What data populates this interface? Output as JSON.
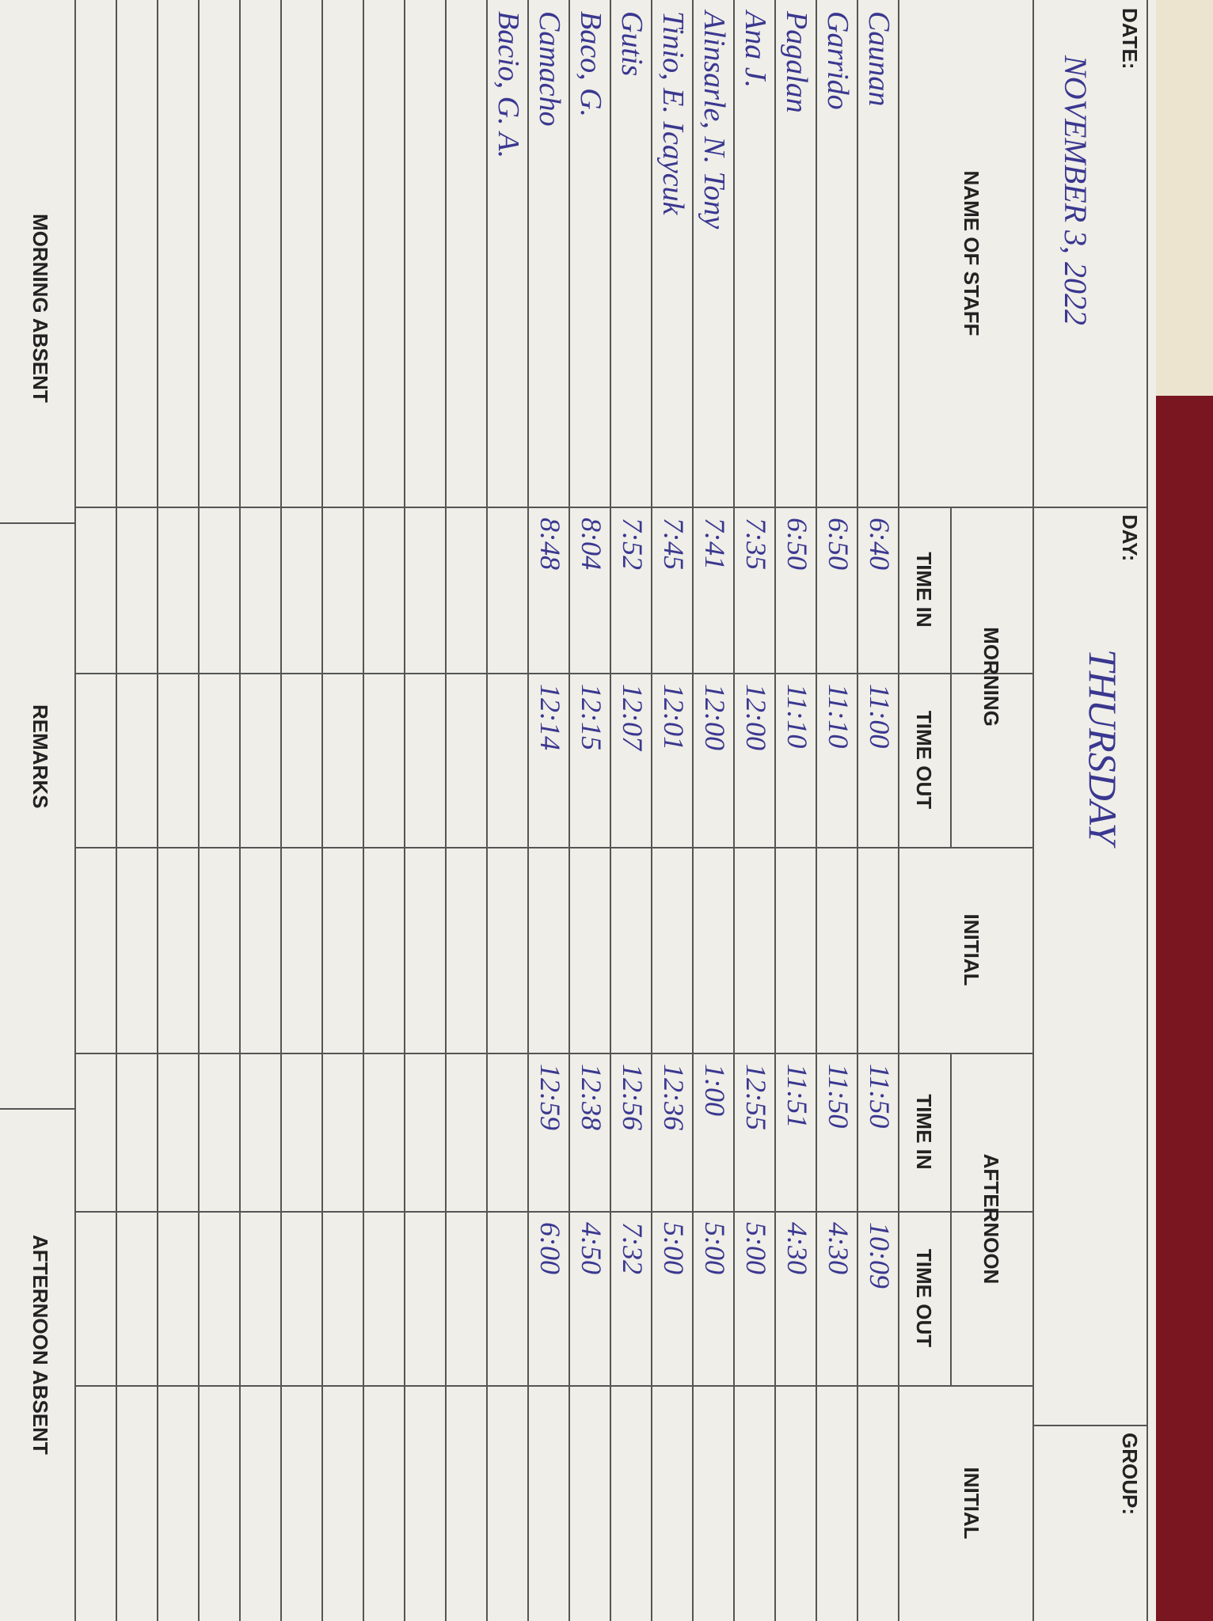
{
  "header": {
    "date_label": "DATE:",
    "date": "NOVEMBER 3, 2022",
    "day_label": "DAY:",
    "day": "THURSDAY",
    "group_label": "GROUP:"
  },
  "table": {
    "columns": [
      "NAME OF STAFF",
      "MORNING",
      "TIME IN",
      "TIME OUT",
      "INITIAL",
      "AFTERNOON",
      "TIME IN",
      "TIME OUT",
      "INITIAL"
    ],
    "rows": [
      {
        "name": "Caunan",
        "am_in": "6:40",
        "am_out": "11:00",
        "pm_in": "11:50",
        "pm_out": "10:09"
      },
      {
        "name": "Garrido",
        "am_in": "6:50",
        "am_out": "11:10",
        "pm_in": "11:50",
        "pm_out": "4:30"
      },
      {
        "name": "Pagalan",
        "am_in": "6:50",
        "am_out": "11:10",
        "pm_in": "11:51",
        "pm_out": "4:30"
      },
      {
        "name": "Ana J.",
        "am_in": "7:35",
        "am_out": "12:00",
        "pm_in": "12:55",
        "pm_out": "5:00"
      },
      {
        "name": "Alinsarle, N. Tony",
        "am_in": "7:41",
        "am_out": "12:00",
        "pm_in": "1:00",
        "pm_out": "5:00"
      },
      {
        "name": "Tinio, E. Icaycuk",
        "am_in": "7:45",
        "am_out": "12:01",
        "pm_in": "12:36",
        "pm_out": "5:00"
      },
      {
        "name": "Gutis",
        "am_in": "7:52",
        "am_out": "12:07",
        "pm_in": "12:56",
        "pm_out": "7:32"
      },
      {
        "name": "Baco, G.",
        "am_in": "8:04",
        "am_out": "12:15",
        "pm_in": "12:38",
        "pm_out": "4:50"
      },
      {
        "name": "Camacho",
        "am_in": "8:48",
        "am_out": "12:14",
        "pm_in": "12:59",
        "pm_out": "6:00"
      },
      {
        "name": "Bacio, G. A."
      }
    ]
  },
  "footer": [
    "MORNING ABSENT",
    "REMARKS",
    "AFTERNOON ABSENT"
  ]
}
